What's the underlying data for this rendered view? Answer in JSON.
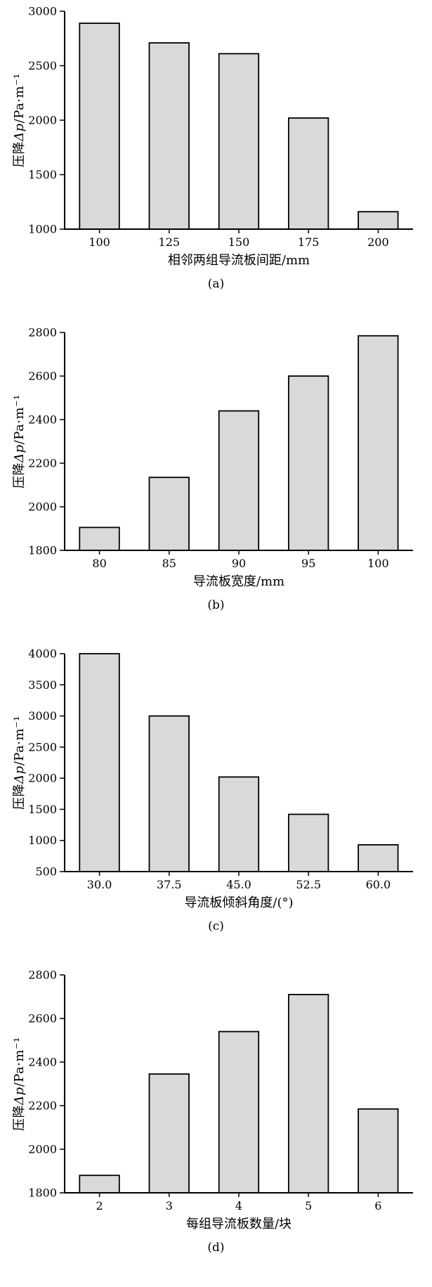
{
  "figure": {
    "background": "#ffffff",
    "bar_fill": "#d9d9d9",
    "bar_stroke": "#000000",
    "axis_color": "#000000"
  },
  "chart_data": [
    {
      "type": "bar",
      "panel_label": "(a)",
      "categories": [
        "100",
        "125",
        "150",
        "175",
        "200"
      ],
      "values": [
        2890,
        2710,
        2610,
        2020,
        1160
      ],
      "xlabel": "相邻两组导流板间距/mm",
      "ylabel": "压降Δp/Pa·m⁻¹",
      "ylabel_parts": [
        "压降",
        "Δp",
        "/Pa·m⁻¹"
      ],
      "ylim": [
        1000,
        3000
      ],
      "yticks": [
        1000,
        1500,
        2000,
        2500,
        3000
      ],
      "grid": false,
      "legend": false
    },
    {
      "type": "bar",
      "panel_label": "(b)",
      "categories": [
        "80",
        "85",
        "90",
        "95",
        "100"
      ],
      "values": [
        1905,
        2135,
        2440,
        2600,
        2785
      ],
      "xlabel": "导流板宽度/mm",
      "ylabel": "压降Δp/Pa·m⁻¹",
      "ylabel_parts": [
        "压降",
        "Δp",
        "/Pa·m⁻¹"
      ],
      "ylim": [
        1800,
        2800
      ],
      "yticks": [
        1800,
        2000,
        2200,
        2400,
        2600,
        2800
      ],
      "grid": false,
      "legend": false
    },
    {
      "type": "bar",
      "panel_label": "(c)",
      "categories": [
        "30.0",
        "37.5",
        "45.0",
        "52.5",
        "60.0"
      ],
      "values": [
        4000,
        3000,
        2020,
        1420,
        930
      ],
      "xlabel": "导流板倾斜角度/(°)",
      "ylabel": "压降Δp/Pa·m⁻¹",
      "ylabel_parts": [
        "压降",
        "Δp",
        "/Pa·m⁻¹"
      ],
      "ylim": [
        500,
        4000
      ],
      "yticks": [
        500,
        1000,
        1500,
        2000,
        2500,
        3000,
        3500,
        4000
      ],
      "grid": false,
      "legend": false
    },
    {
      "type": "bar",
      "panel_label": "(d)",
      "categories": [
        "2",
        "3",
        "4",
        "5",
        "6"
      ],
      "values": [
        1880,
        2345,
        2540,
        2710,
        2185
      ],
      "xlabel": "每组导流板数量/块",
      "ylabel": "压降Δp/Pa·m⁻¹",
      "ylabel_parts": [
        "压降",
        "Δp",
        "/Pa·m⁻¹"
      ],
      "ylim": [
        1800,
        2800
      ],
      "yticks": [
        1800,
        2000,
        2200,
        2400,
        2600,
        2800
      ],
      "grid": false,
      "legend": false
    }
  ]
}
